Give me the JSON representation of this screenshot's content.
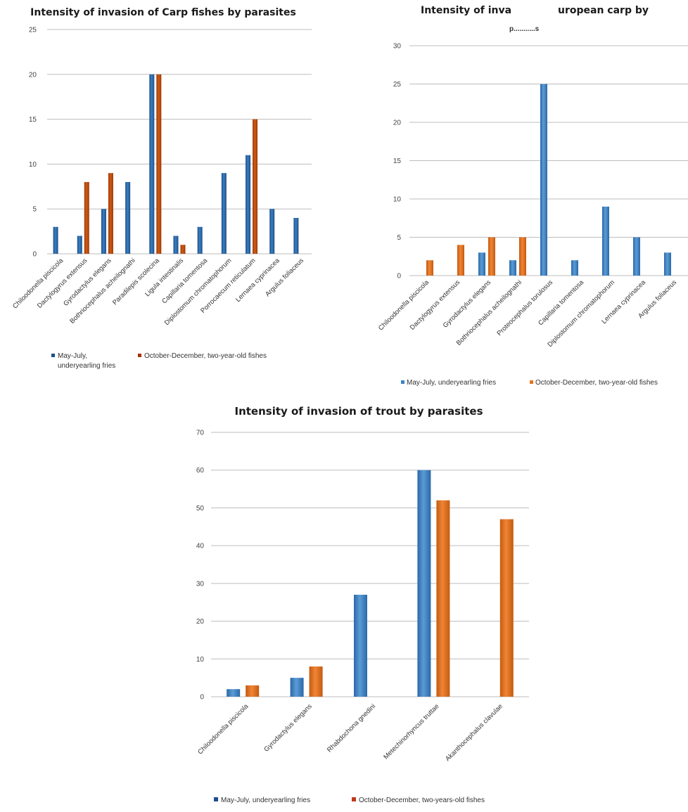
{
  "chart_data": [
    {
      "type": "bar",
      "title": "Intensity of invasion of Carp fishes by parasites",
      "xlabel": "",
      "ylabel": "",
      "ylim": [
        0,
        25
      ],
      "yticks": [
        0,
        5,
        10,
        15,
        20,
        25
      ],
      "grid": true,
      "legend_position": "bottom",
      "categories": [
        "Chiloodonella piscicola",
        "Dactylogyrus extensus",
        "Gyrodactylus elegans",
        "Bothriocephalus acheilognathi",
        "Paradilepis scolecina",
        "Ligula intestinalis",
        "Capillaria tomentosa",
        "Diplostomum chromatophorum",
        "Porrocaecum reticulatum",
        "Lernaea cyprinacea",
        "Argulus foliaceus"
      ],
      "series": [
        {
          "name": "May-July, underyearling fries",
          "legend_lines": [
            "May-July,",
            "underyearling fries"
          ],
          "color": "#2e6fb0",
          "values": [
            3,
            2,
            5,
            8,
            20,
            2,
            3,
            9,
            11,
            5,
            4
          ]
        },
        {
          "name": "October-December, two-year-old fishes",
          "legend_lines": [
            "October-December, two-year-old fishes"
          ],
          "color": "#c8500f",
          "values": [
            null,
            8,
            9,
            null,
            20,
            1,
            null,
            null,
            15,
            null,
            null
          ]
        }
      ]
    },
    {
      "type": "bar",
      "title": "Intensity of inva        uropean carp by",
      "title_line2": "p...........s",
      "xlabel": "",
      "ylabel": "",
      "ylim": [
        0,
        30
      ],
      "yticks": [
        0,
        5,
        10,
        15,
        20,
        25,
        30
      ],
      "grid": true,
      "legend_position": "bottom",
      "categories": [
        "Chiloodonella piscicola",
        "Dactylogyrus extensus",
        "Gyrodactylus elegans",
        "Bothriocephalus acheilognathi",
        "Proteocephalus torulosus",
        "Capillaria tomentosa",
        "Diplostomum chromatophorum",
        "Lernaea cyprinacea",
        "Argulus foliaceus"
      ],
      "series": [
        {
          "name": "May-July, underyearling fries",
          "legend_lines": [
            "May-July, underyearling fries"
          ],
          "color": "#3c84c6",
          "values": [
            null,
            null,
            3,
            2,
            25,
            2,
            9,
            5,
            3
          ]
        },
        {
          "name": "October-December, two-year-old fishes",
          "legend_lines": [
            "October-December, two-year-old fishes"
          ],
          "color": "#e8741e",
          "values": [
            2,
            4,
            5,
            5,
            null,
            null,
            null,
            null,
            null
          ]
        }
      ]
    },
    {
      "type": "bar",
      "title": "Intensity of invasion of trout by parasites",
      "xlabel": "",
      "ylabel": "",
      "ylim": [
        0,
        70
      ],
      "yticks": [
        0,
        10,
        20,
        30,
        40,
        50,
        60,
        70
      ],
      "grid": true,
      "legend_position": "bottom",
      "categories": [
        "Chiloodonella piscicola",
        "Gyrodactylus elegans",
        "Rhabdochona gnedini",
        "Metechinorhyncus truttae",
        "Akanthocephalus clavulae"
      ],
      "series": [
        {
          "name": "May-July, underyearling fries",
          "legend_lines": [
            "May-July, underyearling fries"
          ],
          "color": "#3c84c6",
          "legend_color": "#1f4e8c",
          "values": [
            2,
            5,
            27,
            60,
            null
          ]
        },
        {
          "name": "October-December, two-years-old fishes",
          "legend_lines": [
            "October-December, two-years-old fishes"
          ],
          "color": "#e8741e",
          "legend_color": "#c0391b",
          "values": [
            3,
            8,
            null,
            52,
            47
          ]
        }
      ]
    }
  ]
}
